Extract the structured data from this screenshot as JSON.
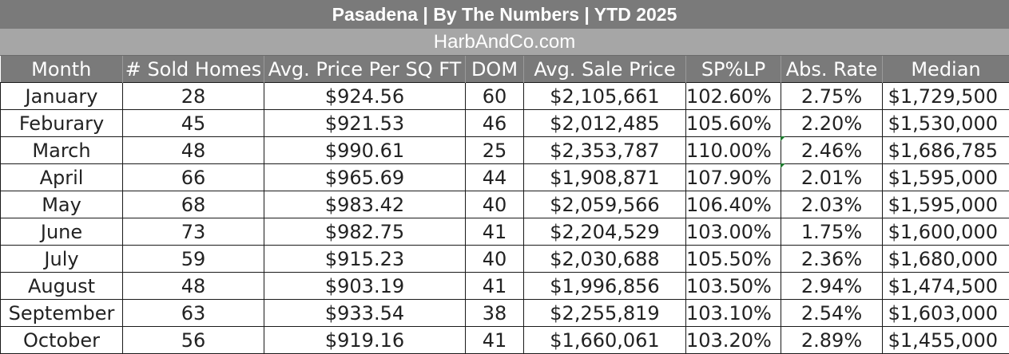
{
  "header": {
    "title": "Pasadena  |  By The Numbers   |  YTD 2025",
    "site": "HarbAndCo.com"
  },
  "columns": [
    "Month",
    "# Sold Homes",
    "Avg. Price Per SQ FT",
    "DOM",
    "Avg. Sale Price",
    "SP%LP",
    "Abs. Rate",
    "Median"
  ],
  "rows": [
    [
      "January",
      "28",
      "$924.56",
      "60",
      "$2,105,661",
      "102.60%",
      "2.75%",
      "$1,729,500"
    ],
    [
      "Feburary",
      "45",
      "$921.53",
      "46",
      "$2,012,485",
      "105.60%",
      "2.20%",
      "$1,530,000"
    ],
    [
      "March",
      "48",
      "$990.61",
      "25",
      "$2,353,787",
      "110.00%",
      "2.46%",
      "$1,686,785"
    ],
    [
      "April",
      "66",
      "$965.69",
      "44",
      "$1,908,871",
      "107.90%",
      "2.01%",
      "$1,595,000"
    ],
    [
      "May",
      "68",
      "$983.42",
      "40",
      "$2,059,566",
      "106.40%",
      "2.03%",
      "$1,595,000"
    ],
    [
      "June",
      "73",
      "$982.75",
      "41",
      "$2,204,529",
      "103.00%",
      "1.75%",
      "$1,600,000"
    ],
    [
      "July",
      "59",
      "$915.23",
      "40",
      "$2,030,688",
      "105.50%",
      "2.36%",
      "$1,680,000"
    ],
    [
      "August",
      "48",
      "$903.19",
      "41",
      "$1,996,856",
      "103.50%",
      "2.94%",
      "$1,474,500"
    ],
    [
      "September",
      "63",
      "$933.54",
      "38",
      "$2,255,819",
      "103.10%",
      "2.54%",
      "$1,603,000"
    ],
    [
      "October",
      "56",
      "$919.16",
      "41",
      "$1,660,061",
      "103.20%",
      "2.89%",
      "$1,455,000"
    ]
  ],
  "colors": {
    "header_bg": "#7a7a7a",
    "site_bg": "#a6a6a6",
    "text": "#222222",
    "comment_marker": "#1e7a2e"
  }
}
